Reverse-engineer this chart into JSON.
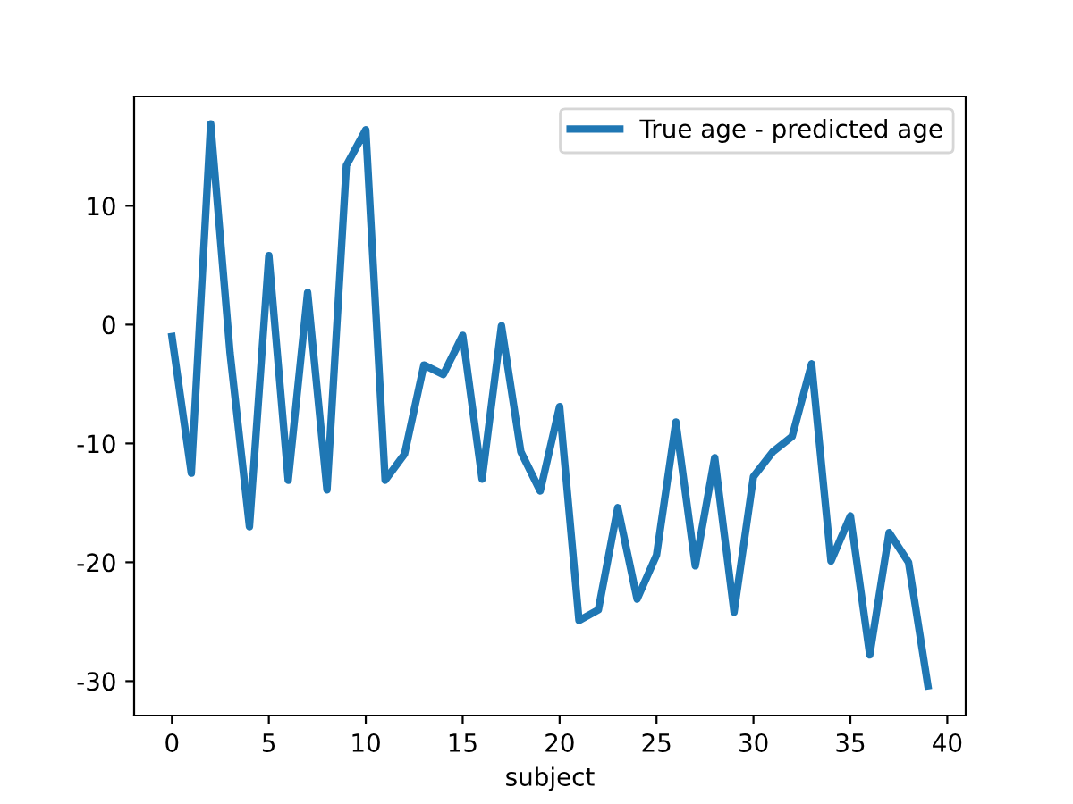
{
  "chart_data": {
    "type": "line",
    "xlabel": "subject",
    "x": [
      0,
      1,
      2,
      3,
      4,
      5,
      6,
      7,
      8,
      9,
      10,
      11,
      12,
      13,
      14,
      15,
      16,
      17,
      18,
      19,
      20,
      21,
      22,
      23,
      24,
      25,
      26,
      27,
      28,
      29,
      30,
      31,
      32,
      33,
      34,
      35,
      36,
      37,
      38,
      39
    ],
    "series": [
      {
        "name": "True age - predicted age",
        "color": "#1f77b4",
        "values": [
          -1.0,
          -12.5,
          16.9,
          -2.4,
          -17.0,
          5.8,
          -13.1,
          2.7,
          -13.9,
          13.4,
          16.4,
          -13.1,
          -10.9,
          -3.4,
          -4.2,
          -0.9,
          -13.0,
          -0.1,
          -10.7,
          -14.0,
          -6.9,
          -24.9,
          -24.0,
          -15.4,
          -23.1,
          -19.4,
          -8.2,
          -20.3,
          -11.2,
          -24.2,
          -12.8,
          -10.7,
          -9.4,
          -3.3,
          -19.9,
          -16.1,
          -27.8,
          -17.5,
          -20.0,
          -30.4
        ]
      }
    ],
    "xlim": [
      -1.95,
      40.95
    ],
    "ylim": [
      -32.9,
      19.2
    ],
    "xticks": [
      0,
      5,
      10,
      15,
      20,
      25,
      30,
      35,
      40
    ],
    "yticks": [
      -30,
      -20,
      -10,
      0,
      10
    ],
    "legend": "top right",
    "grid": false
  }
}
